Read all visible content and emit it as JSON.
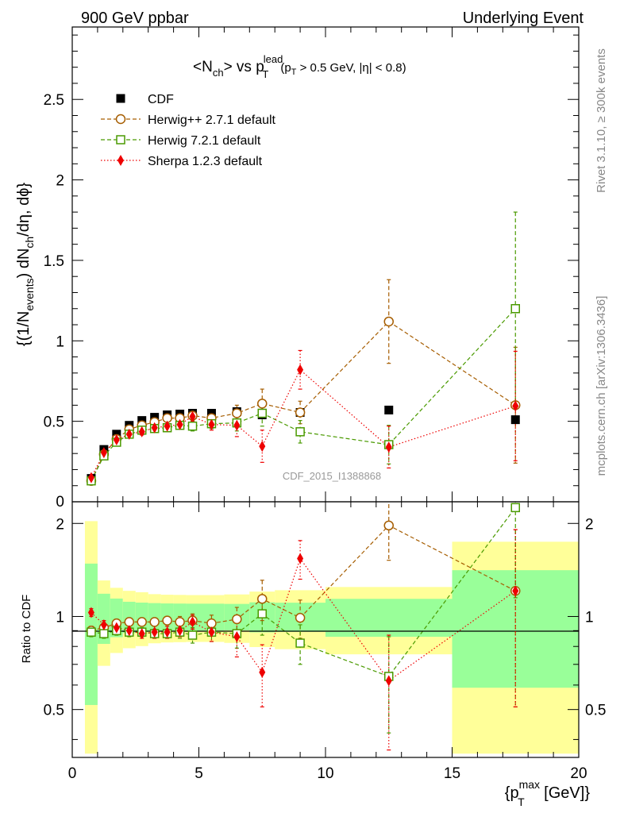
{
  "header": {
    "left": "900 GeV ppbar",
    "right": "Underlying Event"
  },
  "side_labels": {
    "rivet": "Rivet 3.1.10, ≥ 300k events",
    "mcplots": "mcplots.cern.ch [arXiv:1306.3436]"
  },
  "chart_data": {
    "type": "scatter",
    "title": {
      "main": "<N",
      "ch_sub": "ch",
      "vs": "> vs p",
      "lead_sup": "lead",
      "t_sub": "T",
      "cut_open": "(p",
      "cut_t_sub": "T",
      "cut_rest": " > 0.5 GeV, |η| < 0.8)"
    },
    "ylabel": {
      "p1": "{(1/N",
      "events_sub": "events",
      "p2": ") dN",
      "ch_sub": "ch",
      "p3": "/dη, dϕ}"
    },
    "xlabel": {
      "p1": "{p",
      "max_sup": "max",
      "t_sub": "T",
      "p2": " [GeV]}"
    },
    "ratio_ylabel": "Ratio to CDF",
    "watermark": "CDF_2015_I1388868",
    "xlim": [
      0,
      20
    ],
    "ylim_main": [
      0,
      2.95
    ],
    "ylim_ratio": [
      0.35,
      2.35
    ],
    "x_ticks": [
      0,
      5,
      10,
      15,
      20
    ],
    "x_tick_labels": [
      "0",
      "5",
      "10",
      "15",
      "20"
    ],
    "y_ticks_main": [
      0.5,
      1,
      1.5,
      2,
      2.5
    ],
    "y_tick_labels_main": [
      "0.5",
      "1",
      "1.5",
      "2",
      "2.5"
    ],
    "y_zero_label": "0",
    "y_ticks_ratio": [
      0.5,
      1,
      2
    ],
    "y_tick_labels_ratio": [
      "0.5",
      "1",
      "2"
    ],
    "bins": [
      {
        "lo": 0.5,
        "hi": 1.0,
        "x": 0.75,
        "y": 0.145,
        "inner": 0.07,
        "outer": 0.15
      },
      {
        "lo": 1.0,
        "hi": 1.5,
        "x": 1.25,
        "y": 0.325,
        "inner": 0.06,
        "outer": 0.1
      },
      {
        "lo": 1.5,
        "hi": 2.0,
        "x": 1.75,
        "y": 0.42,
        "inner": 0.06,
        "outer": 0.1
      },
      {
        "lo": 2.0,
        "hi": 2.5,
        "x": 2.25,
        "y": 0.475,
        "inner": 0.055,
        "outer": 0.1
      },
      {
        "lo": 2.5,
        "hi": 3.0,
        "x": 2.75,
        "y": 0.505,
        "inner": 0.055,
        "outer": 0.1
      },
      {
        "lo": 3.0,
        "hi": 3.5,
        "x": 3.25,
        "y": 0.525,
        "inner": 0.055,
        "outer": 0.095
      },
      {
        "lo": 3.5,
        "hi": 4.0,
        "x": 3.75,
        "y": 0.54,
        "inner": 0.055,
        "outer": 0.095
      },
      {
        "lo": 4.0,
        "hi": 4.5,
        "x": 4.25,
        "y": 0.545,
        "inner": 0.055,
        "outer": 0.095
      },
      {
        "lo": 4.5,
        "hi": 5.0,
        "x": 4.75,
        "y": 0.55,
        "inner": 0.055,
        "outer": 0.095
      },
      {
        "lo": 5.0,
        "hi": 6.0,
        "x": 5.5,
        "y": 0.55,
        "inner": 0.055,
        "outer": 0.095
      },
      {
        "lo": 6.0,
        "hi": 7.0,
        "x": 6.5,
        "y": 0.56,
        "inner": 0.055,
        "outer": 0.1
      },
      {
        "lo": 7.0,
        "hi": 8.0,
        "x": 7.5,
        "y": 0.54,
        "inner": 0.06,
        "outer": 0.11
      },
      {
        "lo": 8.0,
        "hi": 10.0,
        "x": 9.0,
        "y": 0.555,
        "inner": 0.06,
        "outer": 0.12
      },
      {
        "lo": 10.0,
        "hi": 15.0,
        "x": 12.5,
        "y": 0.57,
        "inner": 0.08,
        "outer": 0.14
      },
      {
        "lo": 15.0,
        "hi": 20.0,
        "x": 17.5,
        "y": 0.51,
        "inner": 0.21,
        "outer": 0.38
      }
    ],
    "series": [
      {
        "name": "CDF",
        "label": "CDF",
        "color": "#000000",
        "marker": "square-filled",
        "line": "none",
        "x": [
          0.75,
          1.25,
          1.75,
          2.25,
          2.75,
          3.25,
          3.75,
          4.25,
          4.75,
          5.5,
          6.5,
          7.5,
          9.0,
          12.5,
          17.5
        ],
        "y": [
          0.145,
          0.325,
          0.42,
          0.475,
          0.505,
          0.525,
          0.54,
          0.545,
          0.55,
          0.55,
          0.56,
          0.54,
          0.555,
          0.57,
          0.51
        ],
        "err": [
          0.005,
          0.005,
          0.005,
          0.005,
          0.005,
          0.005,
          0.005,
          0.005,
          0.005,
          0.005,
          0.005,
          0.005,
          0.005,
          0.005,
          0.005
        ],
        "ratio": [
          1,
          1,
          1,
          1,
          1,
          1,
          1,
          1,
          1,
          1,
          1,
          1,
          1,
          1,
          1
        ],
        "ratio_err": [
          0,
          0,
          0,
          0,
          0,
          0,
          0,
          0,
          0,
          0,
          0,
          0,
          0,
          0,
          0
        ]
      },
      {
        "name": "Herwig++ 2.7.1 default",
        "label": "Herwig++ 2.7.1 default",
        "color": "#a65d00",
        "marker": "circle-open",
        "line": "dashed",
        "x": [
          0.75,
          1.25,
          1.75,
          2.25,
          2.75,
          3.25,
          3.75,
          4.25,
          4.75,
          5.5,
          6.5,
          7.5,
          9.0,
          12.5,
          17.5
        ],
        "y": [
          0.13,
          0.295,
          0.39,
          0.45,
          0.475,
          0.495,
          0.52,
          0.52,
          0.535,
          0.52,
          0.55,
          0.61,
          0.555,
          1.12,
          0.6
        ],
        "err": [
          0.01,
          0.015,
          0.015,
          0.015,
          0.02,
          0.02,
          0.02,
          0.02,
          0.03,
          0.03,
          0.05,
          0.09,
          0.07,
          0.26,
          0.36
        ],
        "ratio": [
          0.9,
          0.92,
          0.95,
          0.96,
          0.96,
          0.96,
          0.97,
          0.96,
          0.97,
          0.95,
          0.98,
          1.14,
          0.99,
          1.97,
          1.21
        ],
        "ratio_err": [
          0.03,
          0.03,
          0.03,
          0.03,
          0.03,
          0.03,
          0.03,
          0.04,
          0.05,
          0.06,
          0.09,
          0.17,
          0.14,
          0.45,
          0.7
        ]
      },
      {
        "name": "Herwig 7.2.1 default",
        "label": "Herwig 7.2.1 default",
        "color": "#4a9a00",
        "marker": "square-open",
        "line": "dashed",
        "x": [
          0.75,
          1.25,
          1.75,
          2.25,
          2.75,
          3.25,
          3.75,
          4.25,
          4.75,
          5.5,
          6.5,
          7.5,
          9.0,
          12.5,
          17.5
        ],
        "y": [
          0.13,
          0.285,
          0.37,
          0.42,
          0.445,
          0.455,
          0.46,
          0.475,
          0.47,
          0.485,
          0.49,
          0.55,
          0.435,
          0.355,
          1.2
        ],
        "err": [
          0.01,
          0.015,
          0.015,
          0.015,
          0.02,
          0.02,
          0.02,
          0.02,
          0.03,
          0.03,
          0.05,
          0.08,
          0.07,
          0.12,
          0.6
        ],
        "ratio": [
          0.89,
          0.88,
          0.9,
          0.89,
          0.89,
          0.88,
          0.88,
          0.89,
          0.87,
          0.89,
          0.88,
          1.02,
          0.82,
          0.64,
          2.25
        ],
        "ratio_err": [
          0.03,
          0.03,
          0.03,
          0.03,
          0.03,
          0.03,
          0.03,
          0.04,
          0.05,
          0.06,
          0.09,
          0.15,
          0.12,
          0.22,
          1.1
        ]
      },
      {
        "name": "Sherpa 1.2.3 default",
        "label": "Sherpa 1.2.3 default",
        "color": "#ee0000",
        "marker": "diamond-filled",
        "line": "dotted",
        "x": [
          0.75,
          1.25,
          1.75,
          2.25,
          2.75,
          3.25,
          3.75,
          4.25,
          4.75,
          5.5,
          6.5,
          7.5,
          9.0,
          12.5,
          17.5
        ],
        "y": [
          0.15,
          0.305,
          0.385,
          0.42,
          0.435,
          0.46,
          0.47,
          0.48,
          0.53,
          0.48,
          0.475,
          0.345,
          0.82,
          0.34,
          0.595
        ],
        "err": [
          0.01,
          0.015,
          0.015,
          0.02,
          0.02,
          0.02,
          0.025,
          0.025,
          0.03,
          0.035,
          0.07,
          0.1,
          0.12,
          0.13,
          0.34
        ],
        "ratio": [
          1.03,
          0.94,
          0.92,
          0.9,
          0.88,
          0.89,
          0.89,
          0.9,
          0.96,
          0.89,
          0.86,
          0.66,
          1.54,
          0.62,
          1.21
        ],
        "ratio_err": [
          0.03,
          0.03,
          0.03,
          0.03,
          0.03,
          0.04,
          0.04,
          0.04,
          0.05,
          0.06,
          0.12,
          0.15,
          0.22,
          0.25,
          0.7
        ]
      }
    ]
  }
}
